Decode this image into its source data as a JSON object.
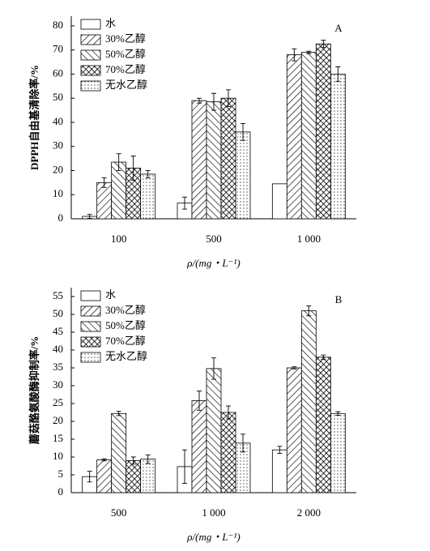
{
  "chart_data": [
    {
      "type": "bar",
      "annotation": "A",
      "ylabel": "DPPH自由基清除率/%",
      "xlabel": "ρ/(mg・L⁻¹)",
      "categories": [
        "100",
        "500",
        "1 000"
      ],
      "ylim": [
        0,
        84
      ],
      "yticks": [
        0,
        10,
        20,
        30,
        40,
        50,
        60,
        70,
        80
      ],
      "series": [
        {
          "name": "水",
          "color": "#000000",
          "pattern": "none",
          "values": [
            1,
            6.5,
            14.5
          ],
          "errors": [
            0.8,
            2.5,
            null
          ]
        },
        {
          "name": "30%乙醇",
          "color": "#000000",
          "pattern": "forward",
          "values": [
            15,
            49,
            68
          ],
          "errors": [
            2,
            1,
            2.5
          ]
        },
        {
          "name": "50%乙醇",
          "color": "#000000",
          "pattern": "backward",
          "values": [
            23.5,
            48.5,
            69
          ],
          "errors": [
            3.5,
            3.5,
            0.5
          ]
        },
        {
          "name": "70%乙醇",
          "color": "#000000",
          "pattern": "cross",
          "values": [
            21,
            50,
            72.5
          ],
          "errors": [
            5,
            3.5,
            1.5
          ]
        },
        {
          "name": "无水乙醇",
          "color": "#000000",
          "pattern": "dots",
          "values": [
            18.5,
            36,
            60
          ],
          "errors": [
            1.5,
            3.5,
            3
          ]
        }
      ]
    },
    {
      "type": "bar",
      "annotation": "B",
      "ylabel": "蘑菇酪氨酸酶抑制率/%",
      "xlabel": "ρ/(mg・L⁻¹)",
      "categories": [
        "500",
        "1 000",
        "2 000"
      ],
      "ylim": [
        0,
        57.5
      ],
      "yticks": [
        0,
        5,
        10,
        15,
        20,
        25,
        30,
        35,
        40,
        45,
        50,
        55
      ],
      "series": [
        {
          "name": "水",
          "color": "#000000",
          "pattern": "none",
          "values": [
            4.5,
            7.3,
            12
          ],
          "errors": [
            1.5,
            4.7,
            1
          ]
        },
        {
          "name": "30%乙醇",
          "color": "#000000",
          "pattern": "forward",
          "values": [
            9.2,
            25.8,
            35
          ],
          "errors": [
            0.3,
            2.7,
            0.3
          ]
        },
        {
          "name": "50%乙醇",
          "color": "#000000",
          "pattern": "backward",
          "values": [
            22.2,
            34.8,
            51
          ],
          "errors": [
            0.6,
            3,
            1.4
          ]
        },
        {
          "name": "70%乙醇",
          "color": "#000000",
          "pattern": "cross",
          "values": [
            9,
            22.5,
            38
          ],
          "errors": [
            1,
            1.8,
            0.6
          ]
        },
        {
          "name": "无水乙醇",
          "color": "#000000",
          "pattern": "dots",
          "values": [
            9.4,
            13.9,
            22.2
          ],
          "errors": [
            1.2,
            2.5,
            0.5
          ]
        }
      ]
    }
  ]
}
